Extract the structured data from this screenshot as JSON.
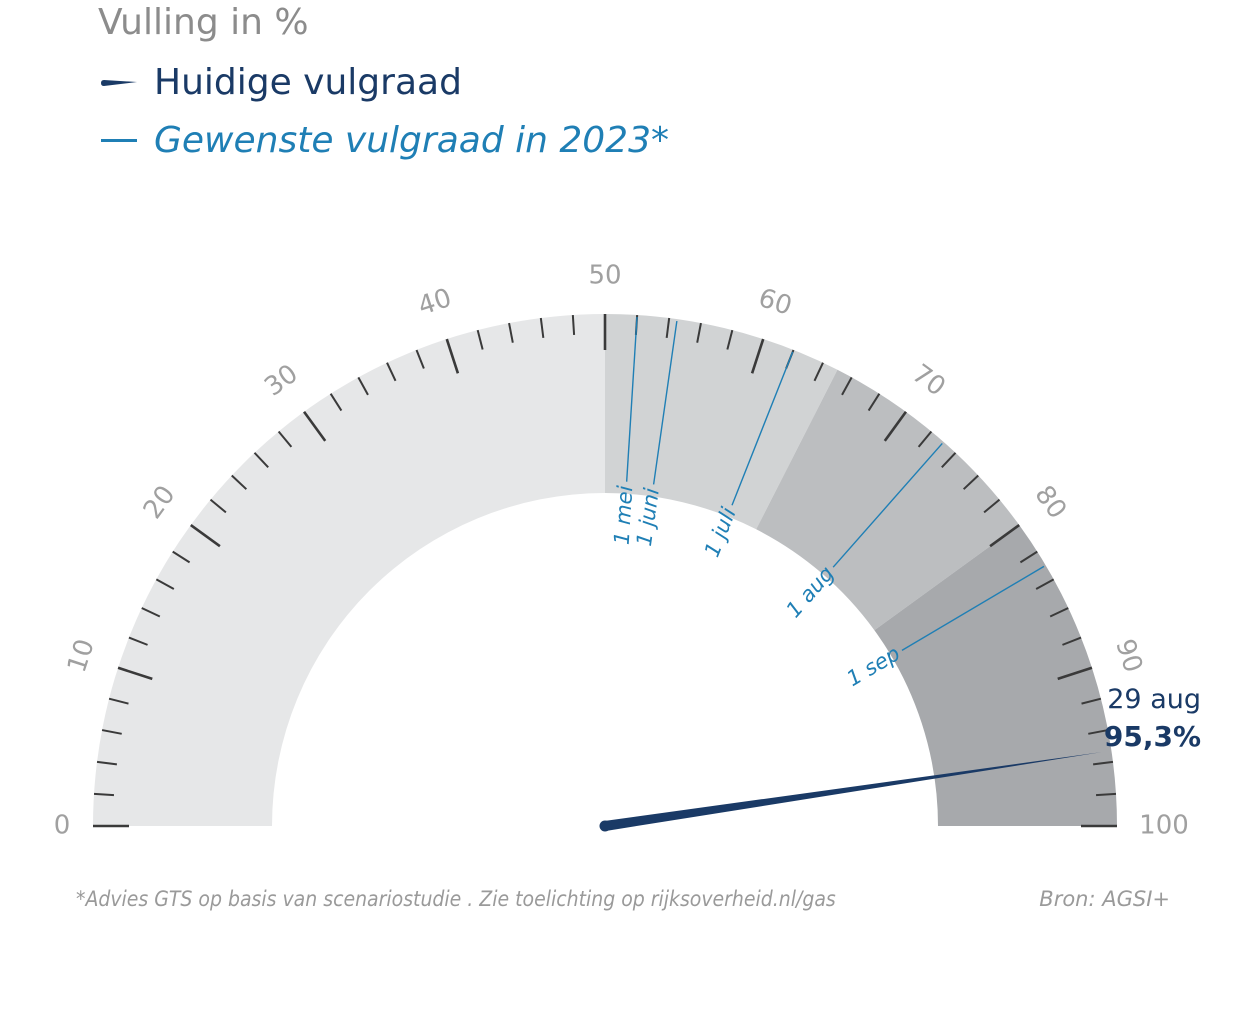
{
  "chart_data": {
    "type": "gauge",
    "title": "Vulling in %",
    "range": [
      0,
      100
    ],
    "major_ticks": [
      0,
      10,
      20,
      30,
      40,
      50,
      60,
      70,
      80,
      90,
      100
    ],
    "minor_tick_step": 2,
    "legend": {
      "current_label": "Huidige vulgraad",
      "target_label": "Gewenste vulgraad in 2023*"
    },
    "current": {
      "date": "29 aug",
      "value": 95.3,
      "value_label": "95,3%"
    },
    "targets": [
      {
        "label": "1 mei",
        "value": 52
      },
      {
        "label": "1 juni",
        "value": 54.5
      },
      {
        "label": "1 juli",
        "value": 62
      },
      {
        "label": "1 aug",
        "value": 73
      },
      {
        "label": "1 sep",
        "value": 83
      }
    ],
    "bands": [
      {
        "from": 0,
        "to": 50,
        "color": "#e6e7e8"
      },
      {
        "from": 50,
        "to": 65,
        "color": "#d1d3d4"
      },
      {
        "from": 65,
        "to": 80,
        "color": "#bcbec0"
      },
      {
        "from": 80,
        "to": 100,
        "color": "#a7a9ac"
      }
    ],
    "footnote": "*Advies GTS op basis van scenariostudie . Zie toelichting op rijksoverheid.nl/gas",
    "source": "Bron: AGSI+",
    "colors": {
      "current": "#1a3a66",
      "target": "#1f7fb5",
      "ticks": "#3a3a3a",
      "labels": "#a0a0a0"
    }
  }
}
